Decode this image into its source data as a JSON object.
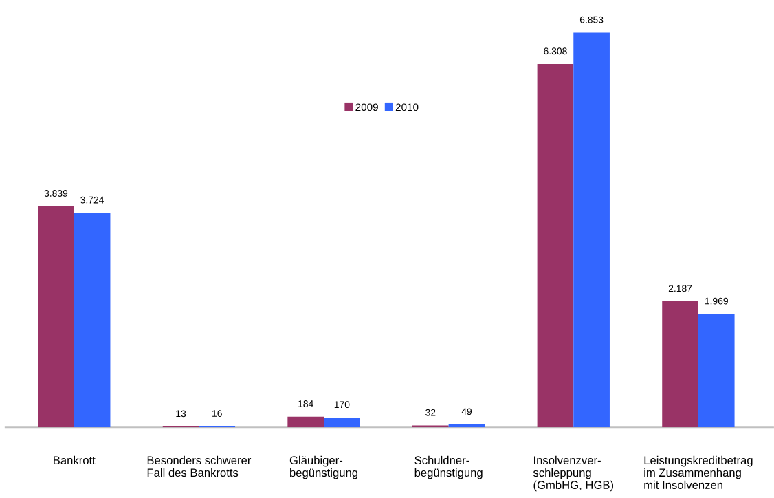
{
  "chart_data": {
    "type": "bar",
    "categories": [
      "Bankrott",
      "Besonders schwerer\nFall des Bankrotts",
      "Gläubiger-\nbegünstigung",
      "Schuldner-\nbegünstigung",
      "Insolvenzver-\nschleppung\n(GmbHG, HGB)",
      "Leistungskreditbetrag\nim Zusammenhang\nmit Insolvenzen"
    ],
    "series": [
      {
        "name": "2009",
        "color": "#993366",
        "values": [
          3839,
          13,
          184,
          32,
          6308,
          2187
        ],
        "value_labels": [
          "3.839",
          "13",
          "184",
          "32",
          "6.308",
          "2.187"
        ]
      },
      {
        "name": "2010",
        "color": "#3366ff",
        "values": [
          3724,
          16,
          170,
          49,
          6853,
          1969
        ],
        "value_labels": [
          "3.724",
          "16",
          "170",
          "49",
          "6.853",
          "1.969"
        ]
      }
    ],
    "legend": "top",
    "tick_labels": "x",
    "grid": false
  }
}
